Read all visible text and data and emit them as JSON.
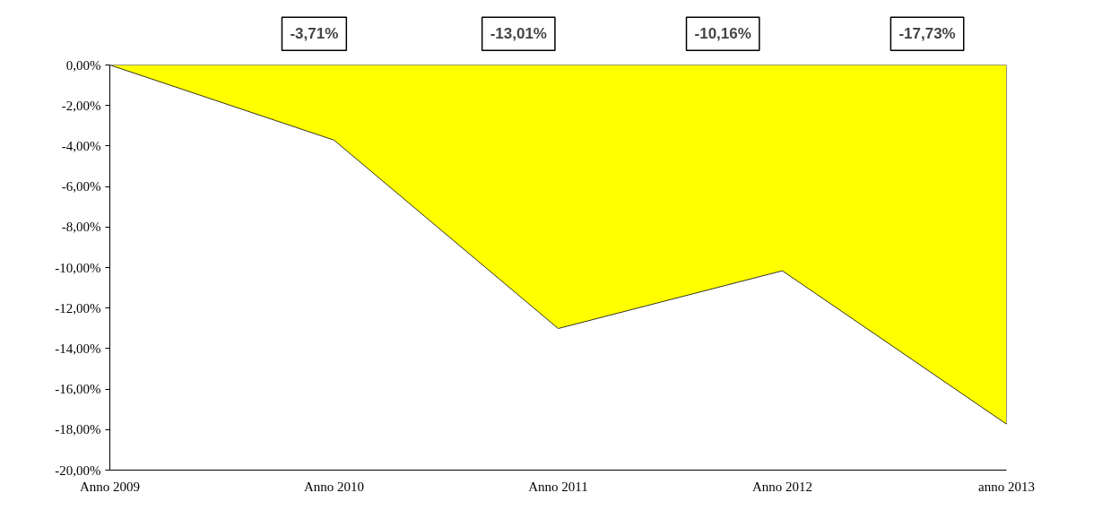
{
  "chart_data": {
    "type": "area",
    "categories": [
      "Anno 2009",
      "Anno 2010",
      "Anno 2011",
      "Anno 2012",
      "anno 2013"
    ],
    "values": [
      0,
      -3.71,
      -13.01,
      -10.16,
      -17.73
    ],
    "color": "#ffff00",
    "value_labels": [
      null,
      "-3,71%",
      "-13,01%",
      "-10,16%",
      "-17,73%"
    ],
    "ylim": [
      -20,
      0
    ],
    "yticks": [
      {
        "value": 0,
        "label": "0,00%"
      },
      {
        "value": -2,
        "label": "-2,00%"
      },
      {
        "value": -4,
        "label": "-4,00%"
      },
      {
        "value": -6,
        "label": "-6,00%"
      },
      {
        "value": -8,
        "label": "-8,00%"
      },
      {
        "value": -10,
        "label": "-10,00%"
      },
      {
        "value": -12,
        "label": "-12,00%"
      },
      {
        "value": -14,
        "label": "-14,00%"
      },
      {
        "value": -16,
        "label": "-16,00%"
      },
      {
        "value": -18,
        "label": "-18,00%"
      },
      {
        "value": -20,
        "label": "-20,00%"
      }
    ],
    "grid": false
  }
}
